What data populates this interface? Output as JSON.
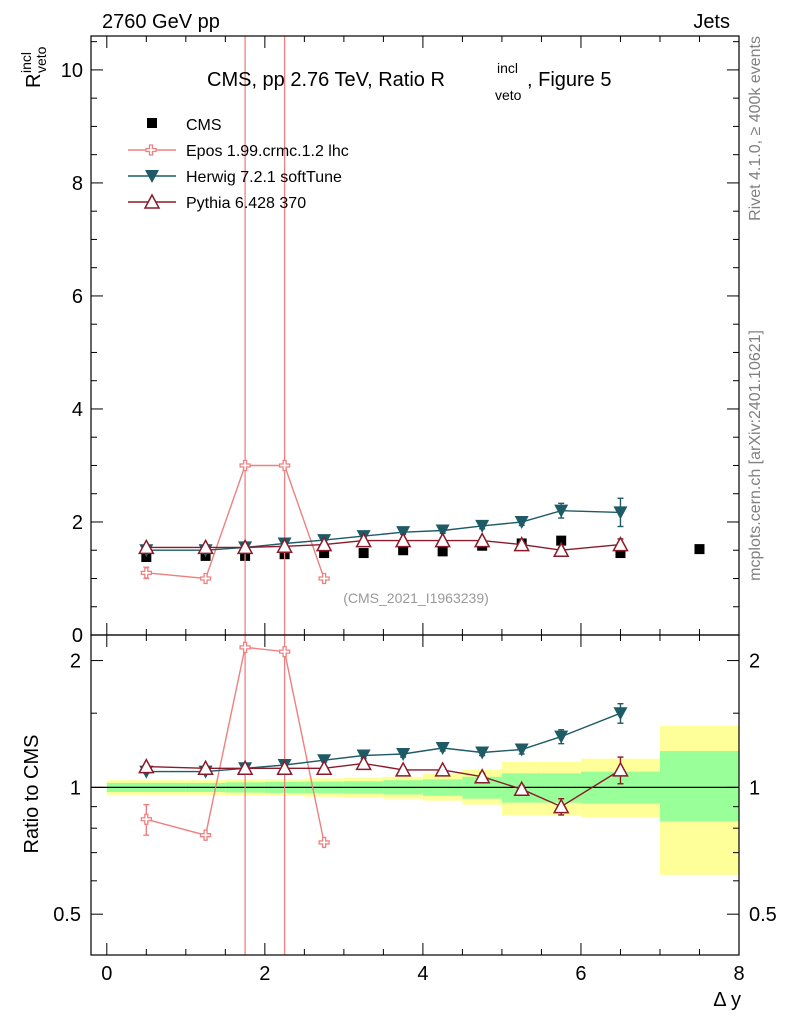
{
  "header": {
    "left": "2760 GeV pp",
    "right": "Jets"
  },
  "side_text": {
    "rivet": "Rivet 4.1.0, ≥ 400k events",
    "mcplots": "mcplots.cern.ch [arXiv:2401.10621]"
  },
  "chart_data": [
    {
      "type": "scatter",
      "panel": "main",
      "title": {
        "pre": "CMS, pp 2.76 TeV, Ratio R",
        "sup": "incl",
        "sub": "veto",
        "post": ", Figure 5"
      },
      "ylabel": {
        "base": "R",
        "sup": "incl",
        "sub": "veto"
      },
      "xlim": [
        -0.2,
        8
      ],
      "ylim": [
        0,
        10.6
      ],
      "yticks": [
        0,
        2,
        4,
        6,
        8,
        10
      ],
      "ytick_labels": [
        "0",
        "2",
        "4",
        "6",
        "8",
        "10"
      ],
      "watermark": "(CMS_2021_I1963239)",
      "legend_position": "top-left",
      "series": [
        {
          "name": "CMS",
          "color": "#000000",
          "marker": "square",
          "x": [
            0.5,
            1.25,
            1.75,
            2.25,
            2.75,
            3.25,
            3.75,
            4.25,
            4.75,
            5.25,
            5.75,
            6.5,
            7.5
          ],
          "y": [
            1.38,
            1.4,
            1.4,
            1.43,
            1.45,
            1.45,
            1.5,
            1.48,
            1.58,
            1.62,
            1.67,
            1.45,
            1.52
          ]
        },
        {
          "name": "Epos 1.99.crmc.1.2 lhc",
          "color": "#f08080",
          "marker": "plus-open",
          "x": [
            0.5,
            1.25,
            1.75,
            2.25,
            2.75
          ],
          "y": [
            1.1,
            1.0,
            3.0,
            3.0,
            1.0
          ],
          "err": [
            0.1,
            0.0,
            0.0,
            0.0,
            0.0
          ],
          "vlines": [
            1.75,
            2.25
          ]
        },
        {
          "name": "Herwig 7.2.1 softTune",
          "color": "#1e5b66",
          "marker": "triangle-down",
          "x": [
            0.5,
            1.25,
            1.75,
            2.25,
            2.75,
            3.25,
            3.75,
            4.25,
            4.75,
            5.25,
            5.75,
            6.5
          ],
          "y": [
            1.5,
            1.5,
            1.55,
            1.62,
            1.68,
            1.75,
            1.82,
            1.85,
            1.93,
            2.0,
            2.2,
            2.17
          ],
          "err": [
            0.03,
            0.03,
            0.03,
            0.03,
            0.03,
            0.04,
            0.04,
            0.05,
            0.05,
            0.06,
            0.13,
            0.25
          ]
        },
        {
          "name": "Pythia 6.428 370",
          "color": "#8b1a2b",
          "marker": "triangle-up-open",
          "x": [
            0.5,
            1.25,
            1.75,
            2.25,
            2.75,
            3.25,
            3.75,
            4.25,
            4.75,
            5.25,
            5.75,
            6.5
          ],
          "y": [
            1.55,
            1.55,
            1.55,
            1.57,
            1.6,
            1.67,
            1.67,
            1.67,
            1.67,
            1.6,
            1.5,
            1.6
          ],
          "err": [
            0.02,
            0.02,
            0.02,
            0.02,
            0.03,
            0.03,
            0.03,
            0.04,
            0.05,
            0.05,
            0.05,
            0.1
          ]
        }
      ]
    },
    {
      "type": "scatter",
      "panel": "ratio",
      "ylabel": "Ratio to CMS",
      "xlabel": "Δ y",
      "xlim": [
        -0.2,
        8
      ],
      "ylim": [
        0.4,
        2.3
      ],
      "yscale": "log",
      "yticks": [
        0.5,
        1,
        2
      ],
      "ytick_labels": [
        "0.5",
        "1",
        "2"
      ],
      "xticks": [
        0,
        2,
        4,
        6,
        8
      ],
      "xtick_labels": [
        "0",
        "2",
        "4",
        "6",
        "8"
      ],
      "bands": {
        "x_edges": [
          0,
          1,
          1.5,
          2,
          2.5,
          3,
          3.5,
          4,
          4.5,
          5,
          5.5,
          6,
          7,
          8
        ],
        "yellow_lo": [
          0.96,
          0.96,
          0.955,
          0.955,
          0.95,
          0.945,
          0.94,
          0.93,
          0.91,
          0.86,
          0.86,
          0.85,
          0.62
        ],
        "yellow_hi": [
          1.04,
          1.04,
          1.045,
          1.045,
          1.05,
          1.055,
          1.06,
          1.08,
          1.1,
          1.15,
          1.15,
          1.17,
          1.4
        ],
        "green_lo": [
          0.975,
          0.975,
          0.972,
          0.97,
          0.968,
          0.966,
          0.962,
          0.955,
          0.94,
          0.92,
          0.92,
          0.915,
          0.83
        ],
        "green_hi": [
          1.025,
          1.025,
          1.028,
          1.03,
          1.032,
          1.034,
          1.04,
          1.045,
          1.06,
          1.08,
          1.08,
          1.09,
          1.22
        ]
      },
      "series": [
        {
          "name": "Epos 1.99.crmc.1.2 lhc",
          "color": "#f08080",
          "marker": "plus-open",
          "x": [
            0.5,
            1.25,
            1.75,
            2.25,
            2.75
          ],
          "y": [
            0.84,
            0.77,
            2.15,
            2.1,
            0.74
          ],
          "err": [
            0.07,
            0.0,
            0.0,
            0.0,
            0.0
          ],
          "vlines": [
            1.75,
            2.25
          ]
        },
        {
          "name": "Herwig 7.2.1 softTune",
          "color": "#1e5b66",
          "marker": "triangle-down",
          "x": [
            0.5,
            1.25,
            1.75,
            2.25,
            2.75,
            3.25,
            3.75,
            4.25,
            4.75,
            5.25,
            5.75,
            6.5
          ],
          "y": [
            1.09,
            1.09,
            1.11,
            1.13,
            1.16,
            1.19,
            1.2,
            1.24,
            1.21,
            1.23,
            1.32,
            1.5
          ],
          "err": [
            0.01,
            0.01,
            0.01,
            0.01,
            0.01,
            0.02,
            0.02,
            0.02,
            0.02,
            0.03,
            0.05,
            0.08
          ]
        },
        {
          "name": "Pythia 6.428 370",
          "color": "#8b1a2b",
          "marker": "triangle-up-open",
          "x": [
            0.5,
            1.25,
            1.75,
            2.25,
            2.75,
            3.25,
            3.75,
            4.25,
            4.75,
            5.25,
            5.75,
            6.5
          ],
          "y": [
            1.12,
            1.11,
            1.11,
            1.11,
            1.11,
            1.14,
            1.1,
            1.1,
            1.06,
            0.99,
            0.9,
            1.1
          ],
          "err": [
            0.01,
            0.01,
            0.01,
            0.01,
            0.01,
            0.01,
            0.01,
            0.01,
            0.02,
            0.02,
            0.04,
            0.08
          ]
        }
      ]
    }
  ]
}
